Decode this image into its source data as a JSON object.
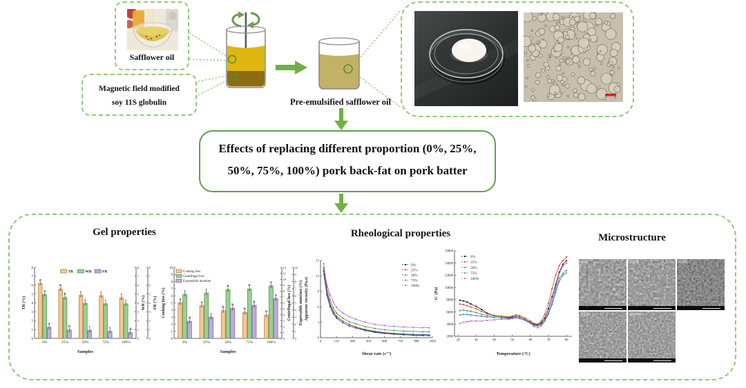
{
  "top": {
    "safflower_label": "Safflower oil",
    "magnetic_label_line1": "Magnetic field modified",
    "magnetic_label_line2": "soy 11S globulin",
    "pre_emulsified_label": "Pre-emulsified safflower oil"
  },
  "middle": {
    "effects_line1": "Effects of replacing different proportion (0%, 25%,",
    "effects_line2": "50%, 75%, 100%) pork back-fat on pork batter"
  },
  "bottom": {
    "gel_title": "Gel properties",
    "rheo_title": "Rheological properties",
    "micro_title": "Microstructure",
    "sem_labels": [
      "0%",
      "25%",
      "50%",
      "75%",
      "100%"
    ]
  },
  "colors": {
    "dashed_border_green": "#8ccb72",
    "solid_border_green": "#5ba345",
    "arrow_green": "#72b043",
    "bar_orange": "#f7c78f",
    "bar_green": "#99cf95",
    "bar_purple": "#bdaed8",
    "micrograph_scalebar_red": "#e01b1b",
    "series_0": "#1a1a1a",
    "series_25": "#e03127",
    "series_50": "#2b6bbf",
    "series_75": "#2f9e44",
    "series_100": "#bd5fd0"
  },
  "chart_data": [
    {
      "id": "chart0",
      "type": "bar",
      "title": "",
      "categories": [
        "0%",
        "25%",
        "50%",
        "75%",
        "100%"
      ],
      "series": [
        {
          "name": "TR",
          "color": "#f7c78f",
          "edge": "#a9763b",
          "values": [
            6.2,
            5.55,
            4.85,
            4.8,
            4.55
          ],
          "letters": [
            "a",
            "b",
            "c",
            "c",
            "c"
          ]
        },
        {
          "name": "WR",
          "color": "#99cf95",
          "edge": "#4d8b49",
          "values": [
            4.95,
            4.6,
            3.95,
            3.9,
            3.9
          ],
          "letters": [
            "a",
            "b",
            "c",
            "c",
            "c"
          ]
        },
        {
          "name": "FR",
          "color": "#bdaed8",
          "edge": "#6f5f9c",
          "values": [
            1.25,
            0.95,
            0.9,
            0.8,
            0.65
          ],
          "letters": [
            "a",
            "b",
            "c",
            "c",
            "d"
          ]
        }
      ],
      "xlabel": "Samples",
      "ylabel": "TR (%)",
      "ylim": [
        0,
        8
      ],
      "yticks": [
        0,
        1,
        2,
        3,
        4,
        5,
        6,
        7,
        8
      ],
      "right_axes": [
        {
          "label": "WR (%)",
          "lim": [
            0,
            8
          ],
          "ticks": [
            0,
            1,
            2,
            3,
            4,
            5,
            6,
            7,
            8
          ]
        },
        {
          "label": "FR (%)",
          "lim": [
            0,
            8
          ],
          "ticks": [
            0,
            1,
            2,
            3,
            4,
            5,
            6,
            7,
            8
          ]
        }
      ],
      "legend": "top"
    },
    {
      "id": "chart1",
      "type": "bar",
      "title": "",
      "categories": [
        "0%",
        "25%",
        "50%",
        "75%",
        "100%"
      ],
      "series": [
        {
          "name": "Cooking loss",
          "color": "#f7c78f",
          "edge": "#a9763b",
          "values": [
            5.0,
            4.6,
            3.9,
            3.65,
            3.25
          ],
          "letters": [
            "a",
            "a",
            "b",
            "b",
            "b"
          ]
        },
        {
          "name": "Centrifugal loss",
          "color": "#99cf95",
          "edge": "#4d8b49",
          "values": [
            6.2,
            6.4,
            6.85,
            6.95,
            7.4
          ],
          "letters": [
            "c",
            "c",
            "b",
            "b",
            "a"
          ]
        },
        {
          "name": "Expressible moisture",
          "color": "#bdaed8",
          "edge": "#6f5f9c",
          "values": [
            2.4,
            3.0,
            4.25,
            4.65,
            5.6
          ],
          "letters": [
            "d",
            "c",
            "b",
            "b",
            "a"
          ]
        }
      ],
      "xlabel": "Samples",
      "ylabel": "Cooking loss (%)",
      "ylim": [
        0,
        10
      ],
      "yticks": [
        0,
        1,
        2,
        3,
        4,
        5,
        6,
        7,
        8,
        9,
        10
      ],
      "right_axes": [
        {
          "label": "Centrifugal loss (%)",
          "lim": [
            0,
            12
          ],
          "ticks": [
            0,
            1,
            2,
            3,
            4,
            5,
            6,
            7,
            8,
            9,
            10,
            11,
            12
          ]
        },
        {
          "label": "Expressible moisture (%)",
          "lim": [
            0,
            10
          ],
          "ticks": [
            0,
            1,
            2,
            3,
            4,
            5,
            6,
            7,
            8,
            9,
            10
          ]
        }
      ],
      "legend": "left"
    },
    {
      "id": "chart2",
      "type": "line",
      "title": "",
      "x": [
        30,
        60,
        90,
        120,
        150,
        210,
        270,
        330,
        420,
        510,
        600,
        690,
        780,
        870,
        960,
        1020
      ],
      "series": [
        {
          "name": "0%",
          "color": "#1a1a1a",
          "values": [
            13.0,
            8.5,
            6.2,
            4.8,
            3.9,
            2.9,
            2.3,
            1.9,
            1.4,
            1.05,
            0.85,
            0.7,
            0.58,
            0.5,
            0.44,
            0.4
          ]
        },
        {
          "name": "25%",
          "color": "#e03127",
          "values": [
            13.6,
            9.0,
            6.6,
            5.2,
            4.2,
            3.2,
            2.6,
            2.1,
            1.6,
            1.25,
            1.0,
            0.85,
            0.74,
            0.66,
            0.6,
            0.57
          ]
        },
        {
          "name": "50%",
          "color": "#2b6bbf",
          "values": [
            12.4,
            8.2,
            6.0,
            4.7,
            3.8,
            2.9,
            2.3,
            1.95,
            1.5,
            1.15,
            0.95,
            0.82,
            0.72,
            0.65,
            0.6,
            0.57
          ]
        },
        {
          "name": "75%",
          "color": "#2f9e44",
          "values": [
            14.4,
            9.8,
            7.3,
            5.8,
            4.8,
            3.8,
            3.1,
            2.7,
            2.15,
            1.8,
            1.55,
            1.4,
            1.3,
            1.22,
            1.17,
            1.14
          ]
        },
        {
          "name": "100%",
          "color": "#bd5fd0",
          "values": [
            13.4,
            10.4,
            8.3,
            6.9,
            5.9,
            4.8,
            4.1,
            3.6,
            3.0,
            2.6,
            2.35,
            2.2,
            2.08,
            2.0,
            1.95,
            1.92
          ]
        }
      ],
      "xlabel": "Shear rate (s⁻¹)",
      "ylabel": "Apparent viscosity (Pa.s)",
      "xlim": [
        0,
        1050
      ],
      "xticks": [
        0,
        150,
        300,
        450,
        600,
        750,
        900,
        1050
      ],
      "ylim": [
        0,
        15
      ],
      "yticks": [
        0,
        3,
        6,
        9,
        12,
        15
      ],
      "legend_pos": "tr"
    },
    {
      "id": "chart3",
      "type": "line",
      "title": "",
      "x": [
        21,
        23,
        25,
        27,
        30,
        33,
        36,
        40,
        44,
        48,
        50,
        52,
        54,
        57,
        60,
        62,
        64,
        66,
        68,
        70,
        72,
        74,
        76,
        78,
        80
      ],
      "series": [
        {
          "name": "0%",
          "color": "#1a1a1a",
          "values": [
            7900,
            7800,
            7600,
            7300,
            6900,
            6400,
            5800,
            5400,
            5200,
            5000,
            5100,
            5300,
            5200,
            4800,
            4300,
            4000,
            3900,
            4200,
            5000,
            6500,
            8500,
            10500,
            12500,
            13800,
            14400
          ]
        },
        {
          "name": "25%",
          "color": "#e03127",
          "values": [
            7300,
            7200,
            7000,
            6800,
            6500,
            6100,
            5700,
            5400,
            5300,
            5200,
            5300,
            5500,
            5400,
            5000,
            4500,
            4100,
            4000,
            4500,
            5600,
            7400,
            9800,
            12000,
            13600,
            14400,
            15000
          ]
        },
        {
          "name": "50%",
          "color": "#2b6bbf",
          "values": [
            5500,
            5600,
            5600,
            5500,
            5400,
            5300,
            5200,
            5100,
            5000,
            4900,
            5000,
            5100,
            5000,
            4700,
            4200,
            3800,
            3700,
            3900,
            4500,
            5600,
            7200,
            9200,
            11000,
            12000,
            12400
          ]
        },
        {
          "name": "75%",
          "color": "#2f9e44",
          "values": [
            6200,
            6300,
            6200,
            6100,
            5900,
            5600,
            5400,
            5300,
            5200,
            5100,
            5200,
            5300,
            5200,
            4800,
            4300,
            3900,
            3800,
            4000,
            4700,
            5900,
            7600,
            9700,
            11500,
            12300,
            12800
          ]
        },
        {
          "name": "100%",
          "color": "#bd5fd0",
          "values": [
            4100,
            4300,
            4400,
            4500,
            4500,
            4500,
            4600,
            4700,
            4800,
            4800,
            4900,
            5000,
            4900,
            4600,
            4100,
            3600,
            3400,
            3700,
            4500,
            5800,
            7700,
            10000,
            12300,
            13500,
            14000
          ]
        }
      ],
      "xlabel": "Temperature (°C)",
      "ylabel": "G' (Pa)",
      "xlim": [
        18,
        83
      ],
      "xticks": [
        20,
        30,
        40,
        50,
        60,
        70,
        80
      ],
      "ylim": [
        2000,
        16000
      ],
      "yticks": [
        2000,
        4000,
        6000,
        8000,
        10000,
        12000,
        14000,
        16000
      ],
      "legend_pos": "tl"
    }
  ]
}
